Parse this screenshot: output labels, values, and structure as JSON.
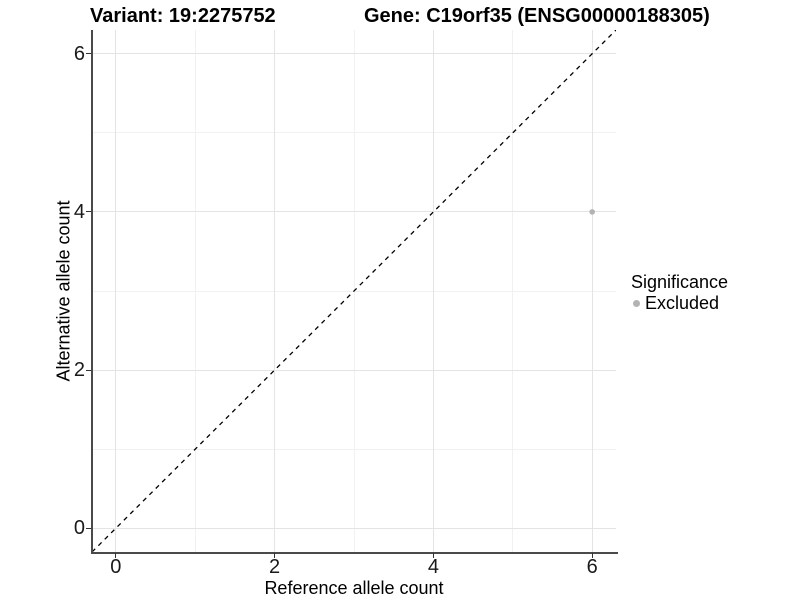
{
  "page_title": {
    "variant": "Variant: 19:2275752",
    "gene": "Gene: C19orf35 (ENSG00000188305)"
  },
  "chart_data": {
    "type": "scatter",
    "title_left": "Variant: 19:2275752",
    "title_right": "Gene: C19orf35 (ENSG00000188305)",
    "xlabel": "Reference allele count",
    "ylabel": "Alternative allele count",
    "xlim": [
      -0.3,
      6.3
    ],
    "ylim": [
      -0.3,
      6.3
    ],
    "x_ticks": [
      0,
      2,
      4,
      6
    ],
    "y_ticks": [
      0,
      2,
      4,
      6
    ],
    "x_minor_ticks": [
      1,
      3,
      5
    ],
    "y_minor_ticks": [
      1,
      3,
      5
    ],
    "grid": true,
    "identity_line": {
      "style": "dashed",
      "from_xy": [
        -0.3,
        -0.3
      ],
      "to_xy": [
        6.3,
        6.3
      ],
      "color": "#000000"
    },
    "series": [
      {
        "name": "Excluded",
        "color": "#b3b3b3",
        "points": [
          [
            6,
            4
          ]
        ]
      }
    ],
    "legend": {
      "title": "Significance",
      "position": "right",
      "items": [
        {
          "label": "Excluded",
          "color": "#b3b3b3"
        }
      ]
    },
    "colors": {
      "major_grid": "#e4e4e4",
      "minor_grid": "#f1f1f1",
      "axis_line": "#4a4a4a",
      "tick_mark": "#333333",
      "tick_text": "#1a1a1a",
      "point": "#b3b3b3"
    }
  }
}
